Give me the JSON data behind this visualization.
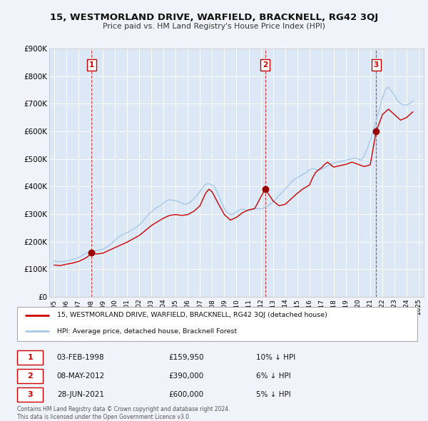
{
  "title": "15, WESTMORLAND DRIVE, WARFIELD, BRACKNELL, RG42 3QJ",
  "subtitle": "Price paid vs. HM Land Registry's House Price Index (HPI)",
  "background_color": "#f0f4fa",
  "plot_bg_color": "#dce8f5",
  "grid_color": "#ffffff",
  "ylim": [
    0,
    900000
  ],
  "yticks": [
    0,
    100000,
    200000,
    300000,
    400000,
    500000,
    600000,
    700000,
    800000,
    900000
  ],
  "ytick_labels": [
    "£0",
    "£100K",
    "£200K",
    "£300K",
    "£400K",
    "£500K",
    "£600K",
    "£700K",
    "£800K",
    "£900K"
  ],
  "xlim_start": 1994.6,
  "xlim_end": 2025.4,
  "xticks": [
    1995,
    1996,
    1997,
    1998,
    1999,
    2000,
    2001,
    2002,
    2003,
    2004,
    2005,
    2006,
    2007,
    2008,
    2009,
    2010,
    2011,
    2012,
    2013,
    2014,
    2015,
    2016,
    2017,
    2018,
    2019,
    2020,
    2021,
    2022,
    2023,
    2024,
    2025
  ],
  "hpi_color": "#a8c8e8",
  "price_color": "#cc0000",
  "sale_dot_color": "#990000",
  "dashed_line_color": "#cc0000",
  "sale_label_border": "#cc0000",
  "sale_label_bg": "#ffffff",
  "sale_label_text": "#cc0000",
  "sales": [
    {
      "num": 1,
      "date": "03-FEB-1998",
      "year": 1998.09,
      "price": 159950,
      "pct": "10%"
    },
    {
      "num": 2,
      "date": "08-MAY-2012",
      "year": 2012.35,
      "price": 390000,
      "pct": "6%"
    },
    {
      "num": 3,
      "date": "28-JUN-2021",
      "year": 2021.49,
      "price": 600000,
      "pct": "5%"
    }
  ],
  "legend_entries": [
    "15, WESTMORLAND DRIVE, WARFIELD, BRACKNELL, RG42 3QJ (detached house)",
    "HPI: Average price, detached house, Bracknell Forest"
  ],
  "footer_lines": [
    "Contains HM Land Registry data © Crown copyright and database right 2024.",
    "This data is licensed under the Open Government Licence v3.0."
  ],
  "hpi_data": {
    "years": [
      1995.0,
      1995.25,
      1995.5,
      1995.75,
      1996.0,
      1996.25,
      1996.5,
      1996.75,
      1997.0,
      1997.25,
      1997.5,
      1997.75,
      1998.0,
      1998.25,
      1998.5,
      1998.75,
      1999.0,
      1999.25,
      1999.5,
      1999.75,
      2000.0,
      2000.25,
      2000.5,
      2000.75,
      2001.0,
      2001.25,
      2001.5,
      2001.75,
      2002.0,
      2002.25,
      2002.5,
      2002.75,
      2003.0,
      2003.25,
      2003.5,
      2003.75,
      2004.0,
      2004.25,
      2004.5,
      2004.75,
      2005.0,
      2005.25,
      2005.5,
      2005.75,
      2006.0,
      2006.25,
      2006.5,
      2006.75,
      2007.0,
      2007.25,
      2007.5,
      2007.75,
      2008.0,
      2008.25,
      2008.5,
      2008.75,
      2009.0,
      2009.25,
      2009.5,
      2009.75,
      2010.0,
      2010.25,
      2010.5,
      2010.75,
      2011.0,
      2011.25,
      2011.5,
      2011.75,
      2012.0,
      2012.25,
      2012.5,
      2012.75,
      2013.0,
      2013.25,
      2013.5,
      2013.75,
      2014.0,
      2014.25,
      2014.5,
      2014.75,
      2015.0,
      2015.25,
      2015.5,
      2015.75,
      2016.0,
      2016.25,
      2016.5,
      2016.75,
      2017.0,
      2017.25,
      2017.5,
      2017.75,
      2018.0,
      2018.25,
      2018.5,
      2018.75,
      2019.0,
      2019.25,
      2019.5,
      2019.75,
      2020.0,
      2020.25,
      2020.5,
      2020.75,
      2021.0,
      2021.25,
      2021.5,
      2021.75,
      2022.0,
      2022.25,
      2022.5,
      2022.75,
      2023.0,
      2023.25,
      2023.5,
      2023.75,
      2024.0,
      2024.25,
      2024.5
    ],
    "values": [
      130000,
      128000,
      127000,
      128000,
      130000,
      132000,
      135000,
      138000,
      142000,
      148000,
      155000,
      160000,
      162000,
      165000,
      168000,
      170000,
      172000,
      178000,
      185000,
      195000,
      205000,
      215000,
      222000,
      228000,
      232000,
      238000,
      245000,
      252000,
      260000,
      272000,
      285000,
      298000,
      308000,
      318000,
      325000,
      330000,
      340000,
      348000,
      352000,
      350000,
      348000,
      345000,
      340000,
      335000,
      338000,
      345000,
      355000,
      368000,
      382000,
      398000,
      408000,
      410000,
      405000,
      395000,
      370000,
      345000,
      320000,
      305000,
      298000,
      300000,
      308000,
      315000,
      318000,
      315000,
      312000,
      315000,
      318000,
      320000,
      318000,
      322000,
      328000,
      335000,
      342000,
      355000,
      368000,
      378000,
      390000,
      402000,
      415000,
      425000,
      432000,
      438000,
      445000,
      450000,
      460000,
      465000,
      462000,
      458000,
      462000,
      468000,
      475000,
      480000,
      485000,
      488000,
      490000,
      492000,
      495000,
      498000,
      500000,
      502000,
      500000,
      495000,
      510000,
      535000,
      568000,
      600000,
      640000,
      680000,
      720000,
      750000,
      760000,
      745000,
      730000,
      710000,
      700000,
      695000,
      695000,
      700000,
      710000
    ]
  },
  "price_data": {
    "years": [
      1995.0,
      1995.5,
      1996.0,
      1996.5,
      1997.0,
      1997.5,
      1997.75,
      1998.09,
      1998.5,
      1999.0,
      1999.5,
      2000.0,
      2000.5,
      2001.0,
      2001.5,
      2002.0,
      2002.5,
      2003.0,
      2003.5,
      2004.0,
      2004.5,
      2005.0,
      2005.5,
      2006.0,
      2006.5,
      2007.0,
      2007.25,
      2007.5,
      2007.75,
      2008.0,
      2008.5,
      2009.0,
      2009.5,
      2010.0,
      2010.5,
      2011.0,
      2011.5,
      2012.35,
      2012.75,
      2013.0,
      2013.5,
      2014.0,
      2014.5,
      2015.0,
      2015.5,
      2016.0,
      2016.25,
      2016.5,
      2016.75,
      2017.0,
      2017.25,
      2017.5,
      2017.75,
      2018.0,
      2018.5,
      2019.0,
      2019.5,
      2020.0,
      2020.5,
      2021.0,
      2021.49,
      2021.75,
      2022.0,
      2022.5,
      2023.0,
      2023.5,
      2024.0,
      2024.5
    ],
    "values": [
      115000,
      113000,
      118000,
      122000,
      128000,
      138000,
      145000,
      159950,
      155000,
      158000,
      168000,
      178000,
      188000,
      198000,
      210000,
      222000,
      240000,
      258000,
      272000,
      285000,
      295000,
      298000,
      295000,
      298000,
      310000,
      330000,
      355000,
      378000,
      390000,
      380000,
      338000,
      298000,
      278000,
      288000,
      305000,
      315000,
      320000,
      390000,
      365000,
      348000,
      330000,
      335000,
      355000,
      375000,
      392000,
      405000,
      430000,
      450000,
      460000,
      468000,
      480000,
      488000,
      478000,
      470000,
      475000,
      480000,
      488000,
      480000,
      472000,
      478000,
      600000,
      630000,
      660000,
      680000,
      660000,
      640000,
      650000,
      670000
    ]
  }
}
